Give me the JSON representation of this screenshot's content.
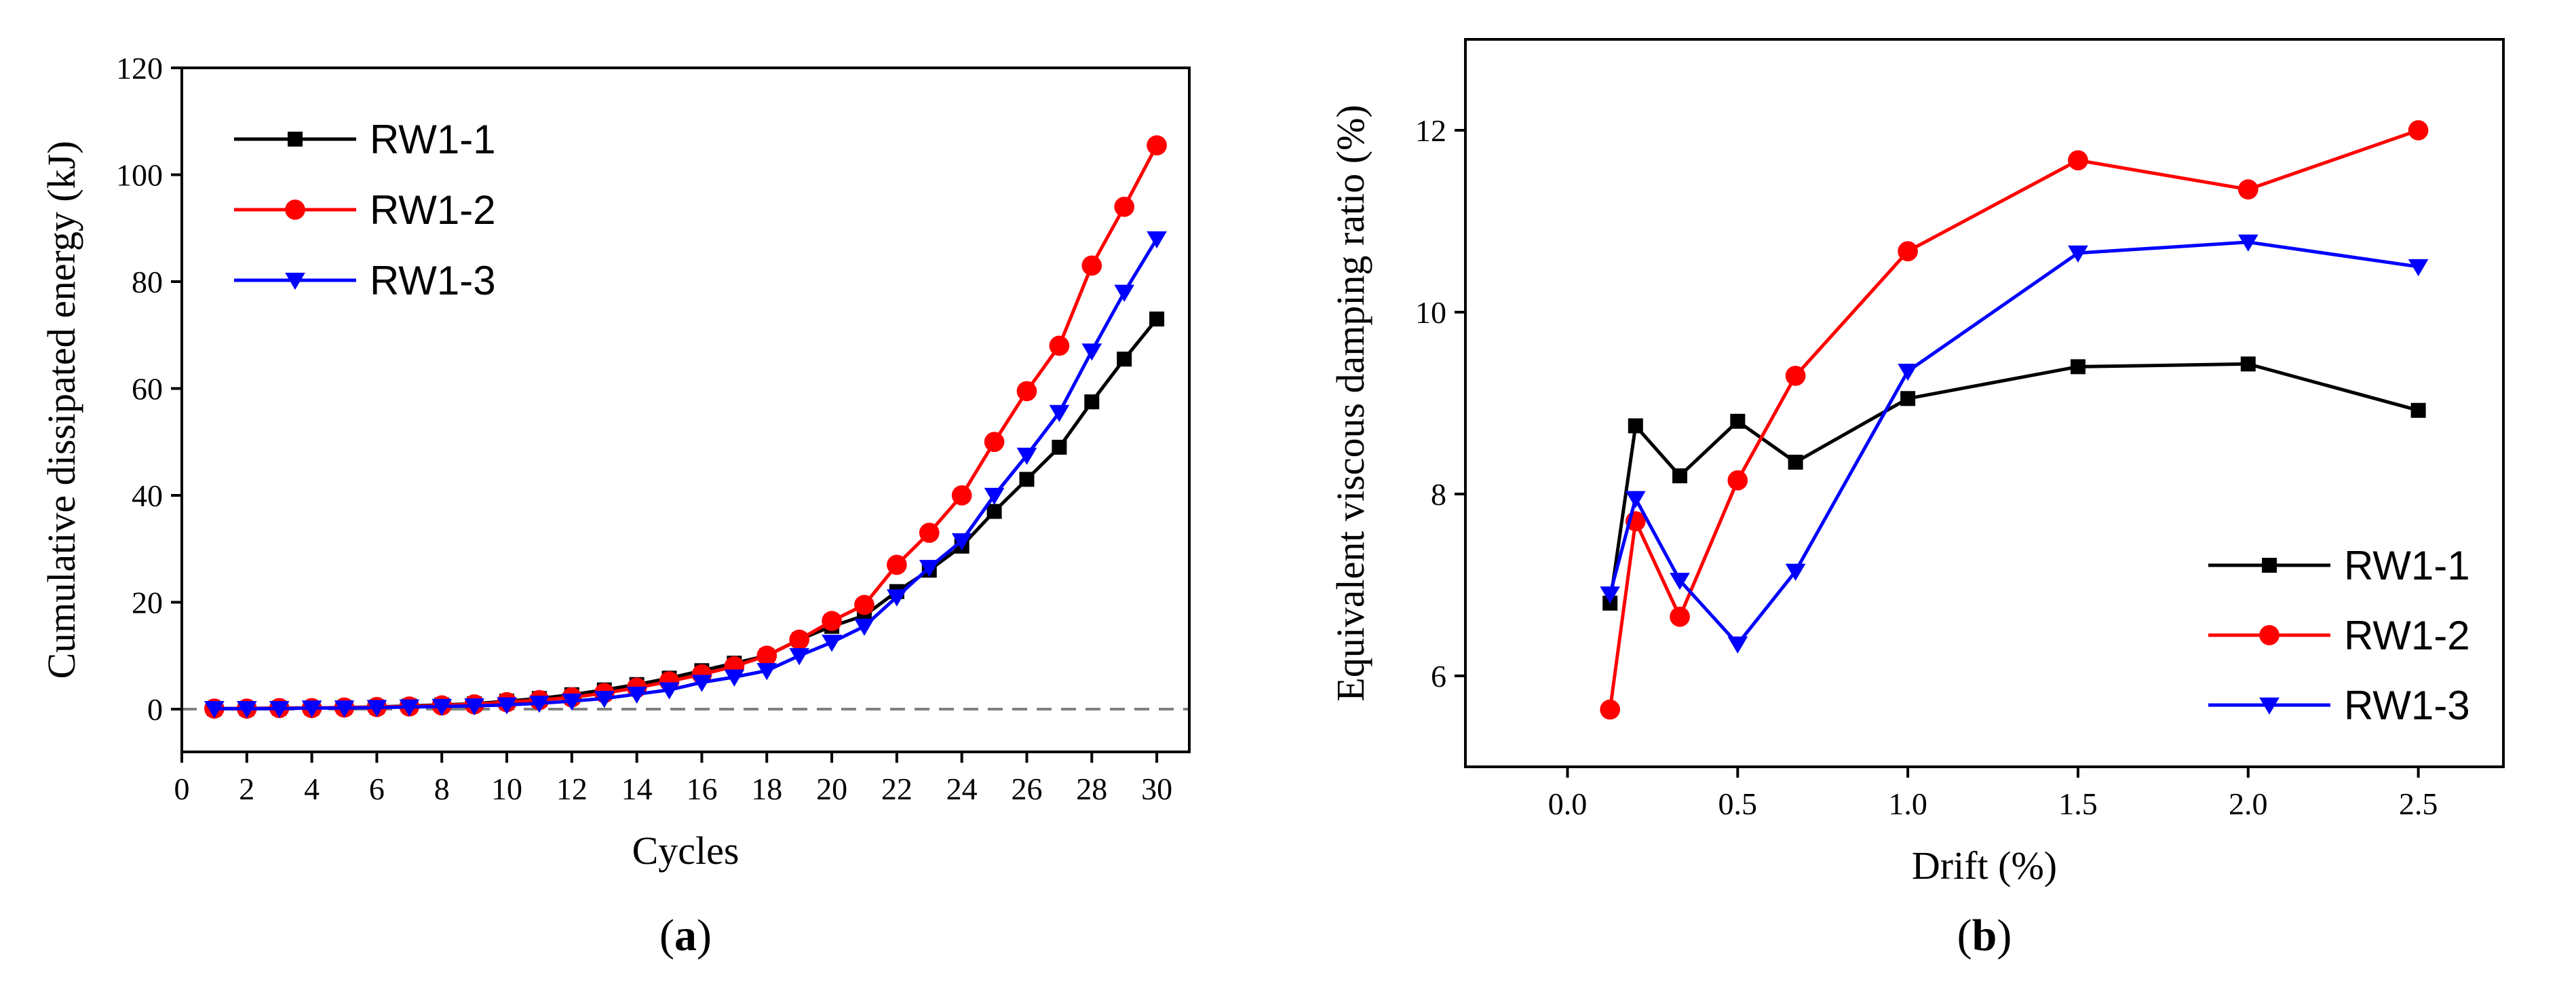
{
  "colors": {
    "RW1-1": "#000000",
    "RW1-2": "#ff0000",
    "RW1-3": "#0000ff",
    "axis": "#000000",
    "zero_line": "#808080"
  },
  "chart_data": [
    {
      "type": "line",
      "panel_label": "(a)",
      "panel_letter": "a",
      "xlabel": "Cycles",
      "ylabel": "Cumulative dissipated energy (kJ)",
      "xlim": [
        0,
        31
      ],
      "ylim": [
        -8,
        120
      ],
      "xticks": [
        0,
        2,
        4,
        6,
        8,
        10,
        12,
        14,
        16,
        18,
        20,
        22,
        24,
        26,
        28,
        30
      ],
      "yticks": [
        0,
        20,
        40,
        60,
        80,
        100,
        120
      ],
      "zero_line": true,
      "legend": "top-left",
      "x": [
        1,
        2,
        3,
        4,
        5,
        6,
        7,
        8,
        9,
        10,
        11,
        12,
        13,
        14,
        15,
        16,
        17,
        18,
        19,
        20,
        21,
        22,
        23,
        24,
        25,
        26,
        27,
        28,
        29,
        30
      ],
      "series": [
        {
          "name": "RW1-1",
          "marker": "square",
          "values": [
            0.1,
            0.1,
            0.2,
            0.2,
            0.3,
            0.4,
            0.6,
            0.8,
            1.0,
            1.5,
            2.0,
            2.7,
            3.6,
            4.6,
            5.8,
            7.2,
            8.6,
            10.0,
            13.0,
            15.5,
            17.5,
            22.0,
            26.0,
            30.5,
            37.0,
            43.0,
            49.0,
            57.5,
            65.5,
            73.0
          ]
        },
        {
          "name": "RW1-2",
          "marker": "circle",
          "values": [
            0.1,
            0.1,
            0.2,
            0.2,
            0.3,
            0.4,
            0.5,
            0.7,
            0.9,
            1.3,
            1.7,
            2.2,
            3.0,
            4.0,
            5.2,
            6.5,
            8.0,
            10.0,
            13.0,
            16.5,
            19.5,
            27.0,
            33.0,
            40.0,
            50.0,
            59.5,
            68.0,
            83.0,
            94.0,
            105.5
          ]
        },
        {
          "name": "RW1-3",
          "marker": "triangle-down",
          "values": [
            0.1,
            0.1,
            0.1,
            0.2,
            0.2,
            0.3,
            0.4,
            0.5,
            0.6,
            0.8,
            1.1,
            1.5,
            2.0,
            2.8,
            3.6,
            5.0,
            6.0,
            7.2,
            10.0,
            12.5,
            15.5,
            21.0,
            26.5,
            31.5,
            40.0,
            47.5,
            55.5,
            67.0,
            78.0,
            88.0
          ]
        }
      ]
    },
    {
      "type": "line",
      "panel_label": "(b)",
      "panel_letter": "b",
      "xlabel": "Drift (%)",
      "ylabel": "Equivalent viscous damping ratio (%)",
      "xlim": [
        -0.3,
        2.75
      ],
      "ylim": [
        5,
        13
      ],
      "xticks": [
        0.0,
        0.5,
        1.0,
        1.5,
        2.0,
        2.5
      ],
      "xtick_labels": [
        "0.0",
        "0.5",
        "1.0",
        "1.5",
        "2.0",
        "2.5"
      ],
      "yticks": [
        6,
        8,
        10,
        12
      ],
      "legend": "bottom-right",
      "x": [
        0.125,
        0.2,
        0.33,
        0.5,
        0.67,
        1.0,
        1.5,
        2.0,
        2.5
      ],
      "series": [
        {
          "name": "RW1-1",
          "marker": "square",
          "values": [
            6.8,
            8.75,
            8.2,
            8.8,
            8.35,
            9.05,
            9.4,
            9.43,
            8.92
          ]
        },
        {
          "name": "RW1-2",
          "marker": "circle",
          "values": [
            5.63,
            7.7,
            6.65,
            8.15,
            9.3,
            10.67,
            11.67,
            11.35,
            12.0
          ]
        },
        {
          "name": "RW1-3",
          "marker": "triangle-down",
          "values": [
            6.9,
            7.95,
            7.05,
            6.35,
            7.15,
            9.35,
            10.65,
            10.77,
            10.5
          ]
        }
      ]
    }
  ]
}
